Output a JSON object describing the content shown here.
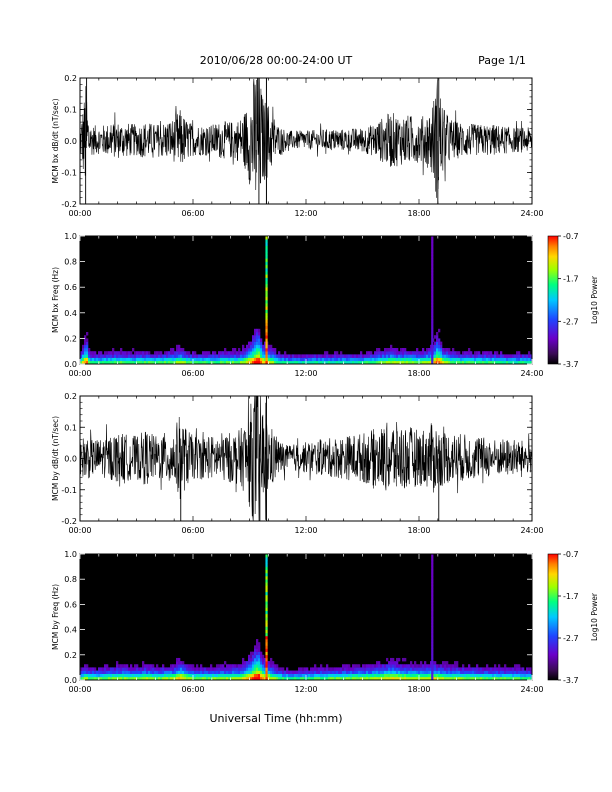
{
  "header": {
    "title": "2010/06/28  00:00-24:00 UT",
    "page": "Page 1/1"
  },
  "footer": {
    "xlabel": "Universal Time (hh:mm)"
  },
  "colors": {
    "trace": "#000000",
    "spectrogram_background": "#000000",
    "colormap": [
      "#000000",
      "#3a0a55",
      "#6a00c8",
      "#1e46ff",
      "#00c8ff",
      "#00ff80",
      "#a0ff00",
      "#ffd700",
      "#ff8000",
      "#ff0000"
    ]
  },
  "chart_data": [
    {
      "type": "line",
      "ylabel": "MCM bx dB/dt (nT/sec)",
      "xlim": [
        0,
        24
      ],
      "ylim": [
        -0.2,
        0.2
      ],
      "x_ticks": [
        "00:00",
        "06:00",
        "12:00",
        "18:00",
        "24:00"
      ],
      "y_ticks": [
        "-0.2",
        "-0.1",
        "0.0",
        "0.1",
        "0.2"
      ],
      "envelope_x_hours": [
        0,
        0.35,
        0.5,
        1,
        2,
        3,
        3.5,
        4,
        4.5,
        5,
        5.3,
        5.6,
        6,
        6.5,
        7,
        7.5,
        8,
        8.5,
        8.8,
        9.1,
        9.35,
        9.5,
        9.7,
        10,
        10.5,
        11,
        12,
        13,
        14,
        15,
        15.5,
        16,
        16.5,
        17,
        17.5,
        18,
        18.5,
        18.8,
        19,
        19.3,
        19.7,
        20,
        21,
        22,
        23,
        24
      ],
      "envelope_amplitude": [
        0.04,
        0.2,
        0.05,
        0.045,
        0.06,
        0.05,
        0.06,
        0.05,
        0.06,
        0.07,
        0.1,
        0.07,
        0.05,
        0.05,
        0.05,
        0.06,
        0.06,
        0.07,
        0.1,
        0.16,
        0.25,
        0.25,
        0.14,
        0.12,
        0.05,
        0.03,
        0.03,
        0.035,
        0.035,
        0.04,
        0.05,
        0.07,
        0.09,
        0.08,
        0.08,
        0.07,
        0.09,
        0.14,
        0.22,
        0.1,
        0.07,
        0.06,
        0.05,
        0.05,
        0.04,
        0.04
      ],
      "spikes": [
        {
          "x_hours": 0.3,
          "y": -0.2
        },
        {
          "x_hours": 0.35,
          "y": 0.2
        },
        {
          "x_hours": 9.42,
          "y": 0.2
        },
        {
          "x_hours": 9.5,
          "y": -0.2
        },
        {
          "x_hours": 19.0,
          "y": -0.2
        },
        {
          "x_hours": 19.05,
          "y": 0.2
        }
      ],
      "gap_marker_hours": 9.9
    },
    {
      "type": "heatmap",
      "ylabel": "MCM bx Freq (Hz)",
      "xlim": [
        0,
        24
      ],
      "ylim": [
        0,
        1.0
      ],
      "x_ticks": [
        "00:00",
        "06:00",
        "12:00",
        "18:00",
        "24:00"
      ],
      "y_ticks": [
        "0.0",
        "0.2",
        "0.4",
        "0.6",
        "0.8",
        "1.0"
      ],
      "colorbar": {
        "label": "Log10 Power",
        "ticks": [
          "-0.7",
          "-1.7",
          "-2.7",
          "-3.7"
        ],
        "range": [
          -3.7,
          -0.7
        ]
      },
      "broadband_lines_hours": [
        9.9,
        18.7
      ],
      "activity_envelope": "same as bx dB/dt"
    },
    {
      "type": "line",
      "ylabel": "MCM by dB/dt (nT/sec)",
      "xlim": [
        0,
        24
      ],
      "ylim": [
        -0.2,
        0.2
      ],
      "x_ticks": [
        "00:00",
        "06:00",
        "12:00",
        "18:00",
        "24:00"
      ],
      "y_ticks": [
        "-0.2",
        "-0.1",
        "0.0",
        "0.1",
        "0.2"
      ],
      "envelope_x_hours": [
        0,
        0.3,
        0.6,
        1,
        2,
        3,
        3.5,
        4,
        4.5,
        5,
        5.3,
        5.6,
        6,
        6.5,
        7,
        7.5,
        8,
        8.5,
        8.8,
        9.1,
        9.35,
        9.5,
        9.7,
        10,
        10.5,
        11,
        12,
        13,
        14,
        15,
        15.5,
        16,
        16.5,
        17,
        17.5,
        18,
        18.5,
        18.8,
        19,
        19.3,
        19.7,
        20,
        21,
        22,
        23,
        24
      ],
      "envelope_amplitude": [
        0.05,
        0.08,
        0.06,
        0.06,
        0.08,
        0.07,
        0.09,
        0.07,
        0.08,
        0.09,
        0.14,
        0.1,
        0.07,
        0.07,
        0.07,
        0.08,
        0.08,
        0.09,
        0.12,
        0.18,
        0.25,
        0.25,
        0.16,
        0.12,
        0.06,
        0.04,
        0.05,
        0.06,
        0.07,
        0.08,
        0.09,
        0.1,
        0.12,
        0.11,
        0.1,
        0.09,
        0.1,
        0.12,
        0.1,
        0.09,
        0.08,
        0.08,
        0.07,
        0.06,
        0.06,
        0.05
      ],
      "spikes": [
        {
          "x_hours": 5.35,
          "y": -0.2
        },
        {
          "x_hours": 9.4,
          "y": 0.2
        },
        {
          "x_hours": 9.55,
          "y": -0.2
        },
        {
          "x_hours": 19.05,
          "y": -0.2
        }
      ],
      "gap_marker_hours": 9.9
    },
    {
      "type": "heatmap",
      "ylabel": "MCM by Freq (Hz)",
      "xlim": [
        0,
        24
      ],
      "ylim": [
        0,
        1.0
      ],
      "x_ticks": [
        "00:00",
        "06:00",
        "12:00",
        "18:00",
        "24:00"
      ],
      "y_ticks": [
        "0.0",
        "0.2",
        "0.4",
        "0.6",
        "0.8",
        "1.0"
      ],
      "colorbar": {
        "label": "Log10 Power",
        "ticks": [
          "-0.7",
          "-1.7",
          "-2.7",
          "-3.7"
        ],
        "range": [
          -3.7,
          -0.7
        ]
      },
      "broadband_lines_hours": [
        9.9,
        18.7
      ],
      "activity_envelope": "same as by dB/dt"
    }
  ]
}
